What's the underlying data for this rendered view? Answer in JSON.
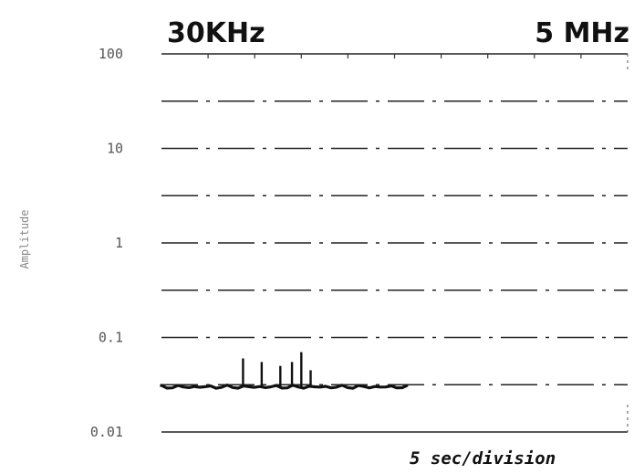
{
  "header": {
    "left_label": "30KHz",
    "right_label": "5 MHz"
  },
  "chart_data": {
    "type": "line",
    "title": "",
    "ylabel": "Amplitude",
    "xlabel": "5 sec/division",
    "y_scale": "log",
    "ylim": [
      0.01,
      100
    ],
    "y_ticks": [
      {
        "value": 100,
        "label": "100"
      },
      {
        "value": 10,
        "label": "10"
      },
      {
        "value": 1,
        "label": "1"
      },
      {
        "value": 0.1,
        "label": "0.1"
      },
      {
        "value": 0.01,
        "label": "0.01"
      }
    ],
    "x_divisions": 10,
    "grid": true,
    "baseline": 0.03,
    "baseline_extent_divisions": 5.3,
    "spikes": [
      {
        "x_division": 1.75,
        "value": 0.06
      },
      {
        "x_division": 2.15,
        "value": 0.055
      },
      {
        "x_division": 2.55,
        "value": 0.05
      },
      {
        "x_division": 2.8,
        "value": 0.055
      },
      {
        "x_division": 3.0,
        "value": 0.07
      },
      {
        "x_division": 3.2,
        "value": 0.045
      }
    ]
  }
}
